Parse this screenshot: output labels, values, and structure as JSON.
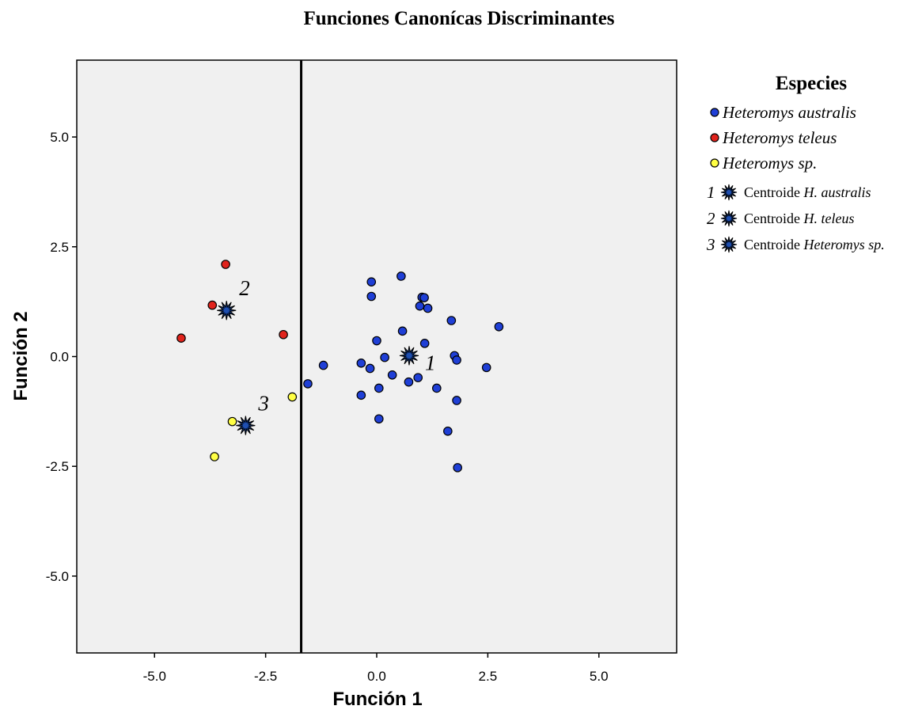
{
  "chart_data": {
    "type": "scatter",
    "title": "Funciones Canonícas Discriminantes",
    "xlabel": "Función 1",
    "ylabel": "Función 2",
    "xlim": [
      -6.75,
      6.75
    ],
    "ylim": [
      -6.75,
      6.75
    ],
    "xticks": [
      -5.0,
      -2.5,
      0.0,
      2.5,
      5.0
    ],
    "yticks": [
      -5.0,
      -2.5,
      0.0,
      2.5,
      5.0
    ],
    "xtick_labels": [
      "-5.0",
      "-2.5",
      "0.0",
      "2.5",
      "5.0"
    ],
    "ytick_labels": [
      "-5.0",
      "-2.5",
      "0.0",
      "2.5",
      "5.0"
    ],
    "plot_background": "#f0f0f0",
    "grid": false,
    "vertical_line_x": -1.7,
    "legend": {
      "title": "Especies",
      "position": "right",
      "species_entries": [
        {
          "label": "Heteromys australis",
          "color": "#1f3fd6"
        },
        {
          "label": "Heteromys teleus",
          "color": "#e0231c"
        },
        {
          "label": "Heteromys sp.",
          "color": "#ffff44"
        }
      ],
      "centroid_entries": [
        {
          "num": "1",
          "prefix": "Centroide",
          "name": "H. australis"
        },
        {
          "num": "2",
          "prefix": "Centroide",
          "name": "H. teleus"
        },
        {
          "num": "3",
          "prefix": "Centroide",
          "name": "Heteromys sp."
        }
      ]
    },
    "series": [
      {
        "name": "Heteromys australis",
        "color": "#1f3fd6",
        "points": [
          [
            -1.55,
            -0.62
          ],
          [
            -1.2,
            -0.2
          ],
          [
            -0.35,
            -0.15
          ],
          [
            -0.35,
            -0.88
          ],
          [
            -0.15,
            -0.27
          ],
          [
            -0.12,
            1.7
          ],
          [
            -0.12,
            1.37
          ],
          [
            0.0,
            0.36
          ],
          [
            0.05,
            -0.72
          ],
          [
            0.05,
            -1.42
          ],
          [
            0.18,
            -0.02
          ],
          [
            0.35,
            -0.42
          ],
          [
            0.55,
            1.83
          ],
          [
            0.58,
            0.58
          ],
          [
            0.72,
            -0.58
          ],
          [
            0.93,
            -0.48
          ],
          [
            0.97,
            1.15
          ],
          [
            1.02,
            1.35
          ],
          [
            1.07,
            1.34
          ],
          [
            1.08,
            0.3
          ],
          [
            1.15,
            1.1
          ],
          [
            1.35,
            -0.72
          ],
          [
            1.6,
            -1.7
          ],
          [
            1.68,
            0.82
          ],
          [
            1.75,
            0.02
          ],
          [
            1.8,
            -0.08
          ],
          [
            1.8,
            -1.0
          ],
          [
            1.82,
            -2.53
          ],
          [
            2.47,
            -0.25
          ],
          [
            2.75,
            0.68
          ]
        ]
      },
      {
        "name": "Heteromys teleus",
        "color": "#e0231c",
        "points": [
          [
            -4.4,
            0.42
          ],
          [
            -3.7,
            1.17
          ],
          [
            -3.4,
            2.1
          ],
          [
            -2.1,
            0.5
          ]
        ]
      },
      {
        "name": "Heteromys sp.",
        "color": "#ffff44",
        "points": [
          [
            -3.65,
            -2.28
          ],
          [
            -3.25,
            -1.48
          ],
          [
            -1.9,
            -0.92
          ]
        ]
      }
    ],
    "centroids": [
      {
        "label": "1",
        "x": 0.73,
        "y": 0.02,
        "label_side": "right"
      },
      {
        "label": "2",
        "x": -3.38,
        "y": 1.05,
        "label_side": "above-right"
      },
      {
        "label": "3",
        "x": -2.95,
        "y": -1.57,
        "label_side": "above-right"
      }
    ]
  }
}
